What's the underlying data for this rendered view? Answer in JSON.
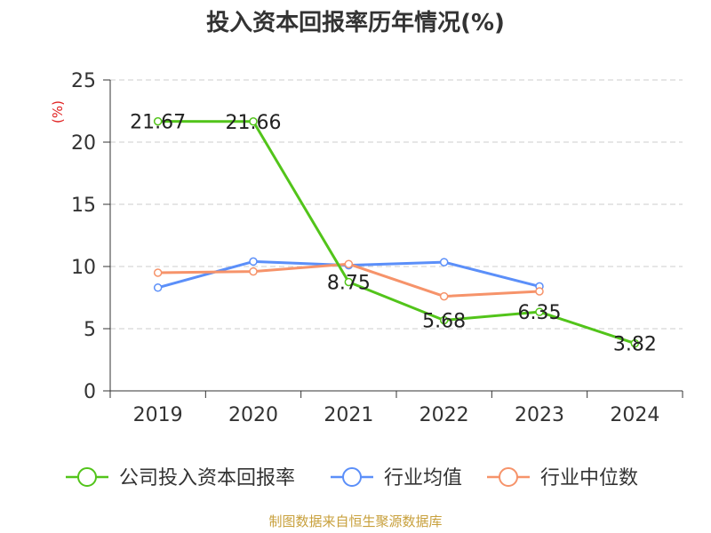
{
  "chart_data": {
    "type": "line",
    "title": "投入资本回报率历年情况(%)",
    "ylabel": "(%)",
    "xlabel": "",
    "categories": [
      "2019",
      "2020",
      "2021",
      "2022",
      "2023",
      "2024"
    ],
    "ylim": [
      0,
      25
    ],
    "yticks": [
      0,
      5,
      10,
      15,
      20,
      25
    ],
    "grid": true,
    "legend_position": "bottom",
    "series": [
      {
        "name": "公司投入资本回报率",
        "color": "#52c41a",
        "values": [
          21.67,
          21.66,
          8.75,
          5.68,
          6.35,
          3.82
        ],
        "show_labels": true
      },
      {
        "name": "行业均值",
        "color": "#5b8ff9",
        "values": [
          8.3,
          10.4,
          10.1,
          10.35,
          8.4,
          null
        ],
        "show_labels": false
      },
      {
        "name": "行业中位数",
        "color": "#f6936a",
        "values": [
          9.5,
          9.6,
          10.2,
          7.6,
          8.0,
          null
        ],
        "show_labels": false
      }
    ],
    "data_labels": [
      "21.67",
      "21.66",
      "8.75",
      "5.68",
      "6.35",
      "3.82"
    ]
  },
  "source": {
    "text": "制图数据来自恒生聚源数据库",
    "color": "#c8a03c"
  },
  "axis_color": "#333333",
  "grid_color": "#cccccc",
  "ylabel_color": "#e02020"
}
